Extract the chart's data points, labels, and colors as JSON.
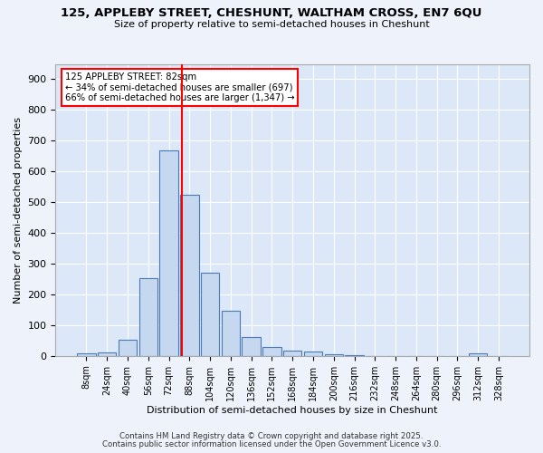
{
  "title1": "125, APPLEBY STREET, CHESHUNT, WALTHAM CROSS, EN7 6QU",
  "title2": "Size of property relative to semi-detached houses in Cheshunt",
  "xlabel": "Distribution of semi-detached houses by size in Cheshunt",
  "ylabel": "Number of semi-detached properties",
  "bin_labels": [
    "8sqm",
    "24sqm",
    "40sqm",
    "56sqm",
    "72sqm",
    "88sqm",
    "104sqm",
    "120sqm",
    "136sqm",
    "152sqm",
    "168sqm",
    "184sqm",
    "200sqm",
    "216sqm",
    "232sqm",
    "248sqm",
    "264sqm",
    "280sqm",
    "296sqm",
    "312sqm",
    "328sqm"
  ],
  "bin_values": [
    7,
    12,
    52,
    252,
    670,
    525,
    270,
    148,
    62,
    28,
    18,
    14,
    5,
    2,
    1,
    1,
    0,
    0,
    0,
    8,
    0
  ],
  "bar_color": "#c5d8f0",
  "bar_edge_color": "#4a7ab5",
  "vline_x": 4.62,
  "vline_color": "red",
  "annotation_title": "125 APPLEBY STREET: 82sqm",
  "annotation_line1": "← 34% of semi-detached houses are smaller (697)",
  "annotation_line2": "66% of semi-detached houses are larger (1,347) →",
  "annotation_box_color": "white",
  "annotation_box_edge": "red",
  "ylim": [
    0,
    950
  ],
  "yticks": [
    0,
    100,
    200,
    300,
    400,
    500,
    600,
    700,
    800,
    900
  ],
  "footnote1": "Contains HM Land Registry data © Crown copyright and database right 2025.",
  "footnote2": "Contains public sector information licensed under the Open Government Licence v3.0.",
  "bg_color": "#eef2fa",
  "plot_bg_color": "#dce8f8"
}
